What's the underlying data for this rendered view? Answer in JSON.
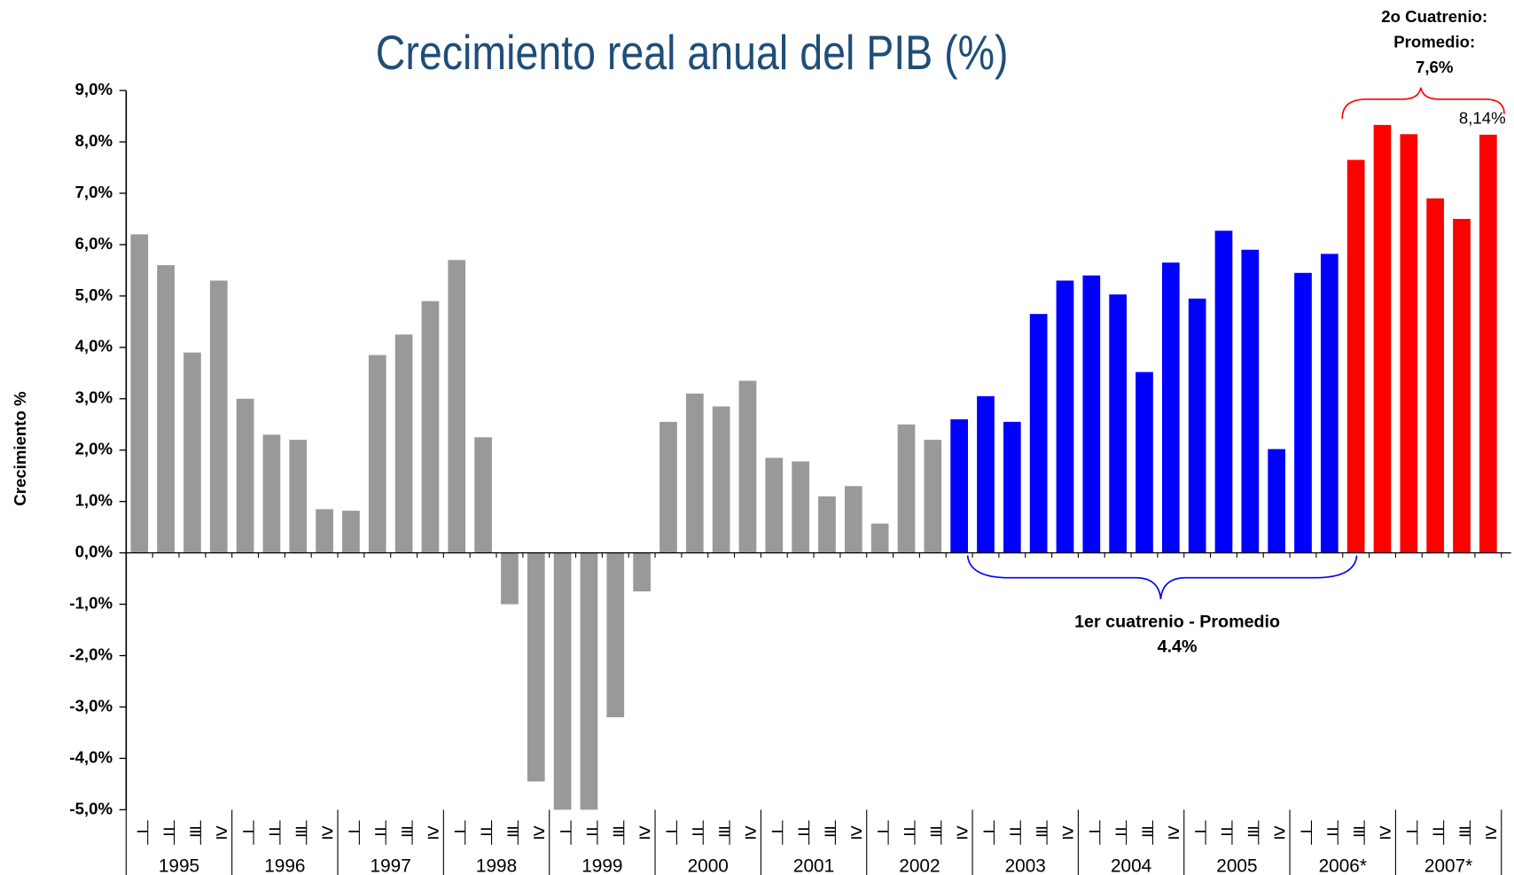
{
  "chart_data": {
    "type": "bar",
    "title": "Crecimiento real anual del PIB (%)",
    "y_label": "Crecimiento %",
    "categories": [
      "−",
      "=",
      "≡",
      "≥",
      "−",
      "=",
      "≡",
      "≥",
      "−",
      "=",
      "≡",
      "≥",
      "−",
      "=",
      "≡",
      "≥",
      "−",
      "=",
      "≡",
      "≥",
      "−",
      "=",
      "≡",
      "≥",
      "−",
      "=",
      "≡",
      "≥",
      "−",
      "=",
      "≡",
      "≥",
      "−",
      "=",
      "≡",
      "≥",
      "−",
      "=",
      "≡",
      "≥",
      "−",
      "=",
      "≡",
      "≥",
      "−",
      "=",
      "≡",
      "≥",
      "−",
      "=",
      "≡",
      "≥"
    ],
    "years": [
      "1995",
      "1996",
      "1997",
      "1998",
      "1999",
      "2000",
      "2001",
      "2002",
      "2003",
      "2004",
      "2005",
      "2006*",
      "2007*"
    ],
    "values": [
      6.2,
      5.6,
      3.9,
      5.3,
      3.0,
      2.3,
      2.2,
      0.85,
      0.82,
      3.85,
      4.25,
      4.9,
      5.7,
      2.25,
      -1.0,
      -4.45,
      -5.1,
      -5.1,
      -3.2,
      -0.75,
      2.55,
      3.1,
      2.85,
      3.35,
      1.85,
      1.78,
      1.1,
      1.3,
      0.57,
      2.5,
      2.2,
      2.6,
      3.05,
      2.55,
      4.65,
      5.3,
      5.4,
      5.03,
      3.52,
      5.65,
      4.95,
      6.27,
      5.9,
      2.02,
      5.45,
      5.82,
      7.65,
      8.33,
      8.15,
      6.9,
      6.5,
      8.14
    ],
    "colors": [
      "#999999",
      "#999999",
      "#999999",
      "#999999",
      "#999999",
      "#999999",
      "#999999",
      "#999999",
      "#999999",
      "#999999",
      "#999999",
      "#999999",
      "#999999",
      "#999999",
      "#999999",
      "#999999",
      "#999999",
      "#999999",
      "#999999",
      "#999999",
      "#999999",
      "#999999",
      "#999999",
      "#999999",
      "#999999",
      "#999999",
      "#999999",
      "#999999",
      "#999999",
      "#999999",
      "#999999",
      "#0000ff",
      "#0000ff",
      "#0000ff",
      "#0000ff",
      "#0000ff",
      "#0000ff",
      "#0000ff",
      "#0000ff",
      "#0000ff",
      "#0000ff",
      "#0000ff",
      "#0000ff",
      "#0000ff",
      "#0000ff",
      "#0000ff",
      "#ff0000",
      "#ff0000",
      "#ff0000",
      "#ff0000",
      "#ff0000",
      "#ff0000"
    ],
    "value_labels": [
      null,
      null,
      null,
      null,
      null,
      null,
      null,
      null,
      null,
      null,
      null,
      null,
      null,
      null,
      null,
      null,
      null,
      null,
      null,
      null,
      null,
      null,
      null,
      null,
      null,
      null,
      null,
      null,
      null,
      null,
      null,
      null,
      null,
      null,
      null,
      null,
      null,
      null,
      null,
      null,
      null,
      null,
      null,
      null,
      null,
      null,
      null,
      null,
      null,
      null,
      null,
      "8,14%"
    ],
    "ylim": [
      -5,
      9
    ],
    "yticks": [
      {
        "value": 9,
        "label": "9,0%"
      },
      {
        "value": 8,
        "label": "8,0%"
      },
      {
        "value": 7,
        "label": "7,0%"
      },
      {
        "value": 6,
        "label": "6,0%"
      },
      {
        "value": 5,
        "label": "5,0%"
      },
      {
        "value": 4,
        "label": "4,0%"
      },
      {
        "value": 3,
        "label": "3,0%"
      },
      {
        "value": 2,
        "label": "2,0%"
      },
      {
        "value": 1,
        "label": "1,0%"
      },
      {
        "value": 0,
        "label": "0,0%"
      },
      {
        "value": -1,
        "label": "-1,0%"
      },
      {
        "value": -2,
        "label": "-2,0%"
      },
      {
        "value": -3,
        "label": "-3,0%"
      },
      {
        "value": -4,
        "label": "-4,0%"
      },
      {
        "value": -5,
        "label": "-5,0%"
      }
    ],
    "annotations": {
      "second_term": [
        "2o Cuatrenio:",
        "Promedio:",
        "7,6%"
      ],
      "first_term": [
        "1er cuatrenio - Promedio",
        "4.4%"
      ]
    }
  }
}
